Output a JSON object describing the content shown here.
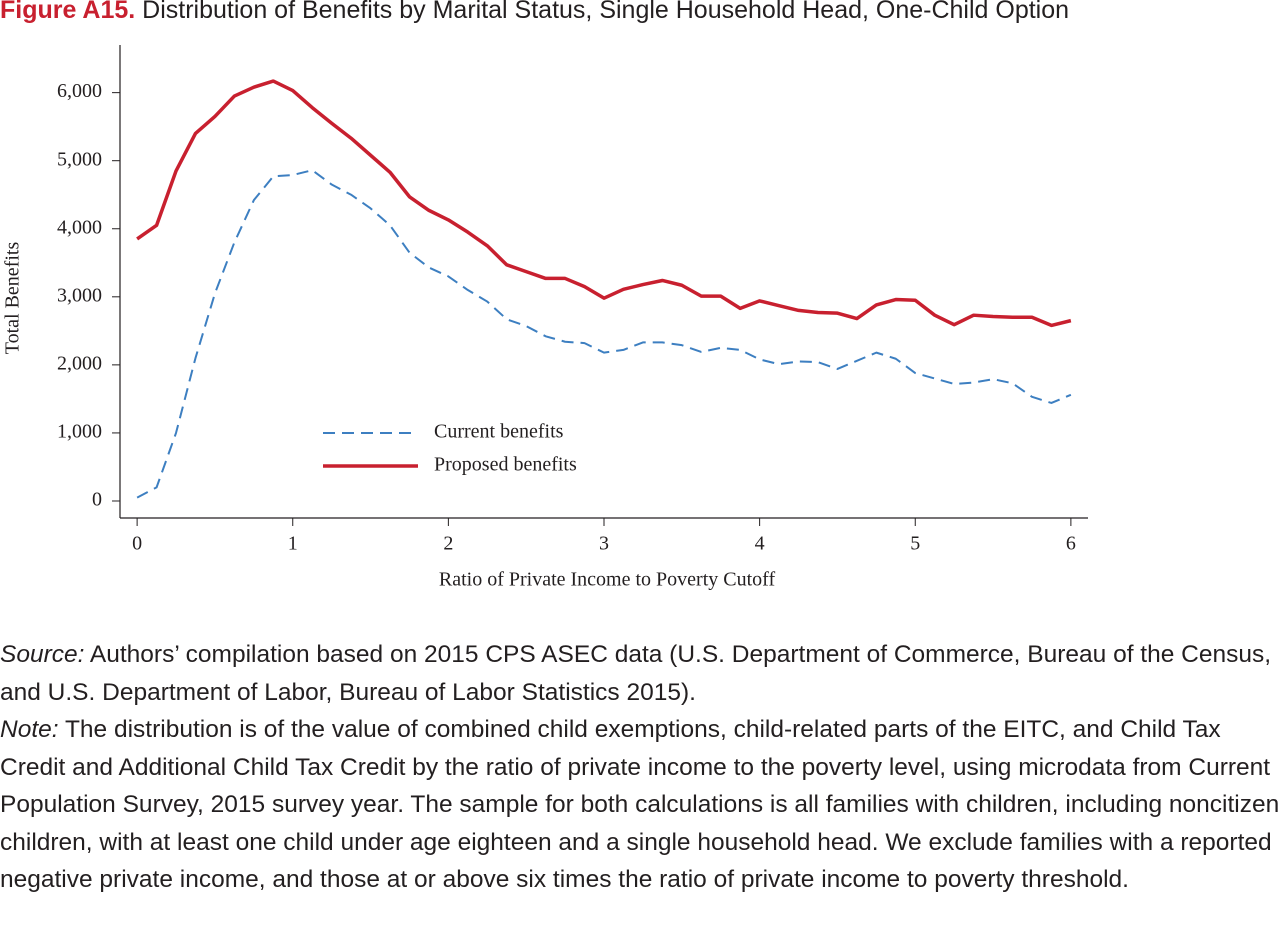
{
  "chart_data": {
    "type": "line",
    "title_label": "Figure A15.",
    "title": "Distribution of Benefits by Marital Status, Single Household Head, One-Child Option",
    "x_label": "Ratio of Private Income to Poverty Cutoff",
    "y_label": "Total Benefits",
    "x": [
      0,
      0.125,
      0.25,
      0.375,
      0.5,
      0.625,
      0.75,
      0.875,
      1,
      1.125,
      1.25,
      1.375,
      1.5,
      1.625,
      1.75,
      1.875,
      2,
      2.125,
      2.25,
      2.375,
      2.5,
      2.625,
      2.75,
      2.875,
      3,
      3.125,
      3.25,
      3.375,
      3.5,
      3.625,
      3.75,
      3.875,
      4,
      4.125,
      4.25,
      4.375,
      4.5,
      4.625,
      4.75,
      4.875,
      5,
      5.125,
      5.25,
      5.375,
      5.5,
      5.625,
      5.75,
      5.875,
      6
    ],
    "series": [
      {
        "name": "Current benefits",
        "color": "#3d7fc1",
        "dash": true,
        "values": [
          50,
          200,
          1000,
          2100,
          3050,
          3800,
          4420,
          4770,
          4790,
          4860,
          4650,
          4500,
          4300,
          4050,
          3650,
          3430,
          3300,
          3100,
          2930,
          2670,
          2570,
          2420,
          2340,
          2320,
          2180,
          2220,
          2330,
          2330,
          2290,
          2190,
          2250,
          2220,
          2080,
          2010,
          2050,
          2040,
          1940,
          2060,
          2180,
          2090,
          1880,
          1800,
          1720,
          1740,
          1790,
          1730,
          1530,
          1440,
          1560
        ]
      },
      {
        "name": "Proposed benefits",
        "color": "#c8202f",
        "dash": false,
        "values": [
          3850,
          4050,
          4850,
          5400,
          5650,
          5950,
          6080,
          6170,
          6030,
          5780,
          5550,
          5330,
          5080,
          4830,
          4470,
          4270,
          4130,
          3950,
          3750,
          3470,
          3370,
          3270,
          3270,
          3150,
          2980,
          3110,
          3180,
          3240,
          3170,
          3010,
          3010,
          2830,
          2940,
          2870,
          2800,
          2770,
          2760,
          2680,
          2880,
          2960,
          2950,
          2730,
          2590,
          2730,
          2710,
          2700,
          2700,
          2580,
          2650
        ]
      }
    ],
    "xlim": [
      -0.11,
      6.11
    ],
    "xticks": [
      0,
      1,
      2,
      3,
      4,
      5,
      6
    ],
    "ylim": [
      -250,
      6700
    ],
    "yticks": [
      0,
      {
        "value": 1000,
        "label": "1,000"
      },
      {
        "value": 2000,
        "label": "2,000"
      },
      {
        "value": 3000,
        "label": "3,000"
      },
      {
        "value": 4000,
        "label": "4,000"
      },
      {
        "value": 5000,
        "label": "5,000"
      },
      {
        "value": 6000,
        "label": "6,000"
      }
    ],
    "grid": false
  },
  "notes": {
    "source_label": "Source:",
    "source": "Authors’ compilation based on 2015 CPS ASEC data (U.S. Department of Commerce, Bureau of the Census, and U.S. Department of Labor, Bureau of Labor Statistics 2015).",
    "note_label": "Note:",
    "note": "The distribution is of the value of combined child exemptions, child-related parts of the EITC, and Child Tax Credit and Additional Child Tax Credit by the ratio of private income to the poverty level, using microdata from Current Population Survey, 2015 survey year. The sample for both calculations is all families with children, including noncitizen children, with at least one child under age eighteen and a single household head. We exclude families with a reported negative private income, and those at or above six times the ratio of private income to poverty threshold."
  }
}
